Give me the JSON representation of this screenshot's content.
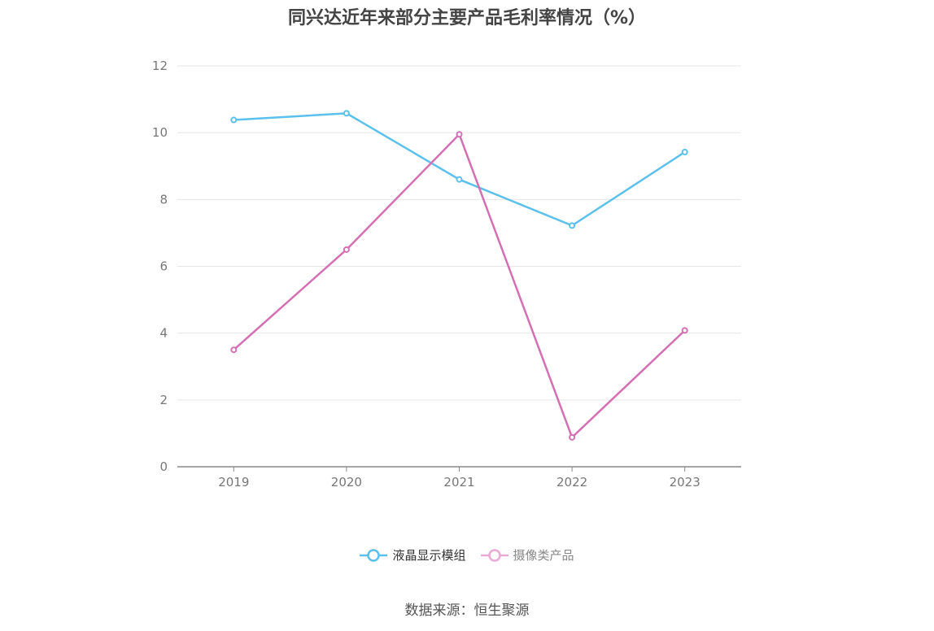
{
  "title": "同兴达近年来部分主要产品毛利率情况（%）",
  "source": "数据来源：恒生聚源",
  "chart_data": {
    "type": "line",
    "categories": [
      "2019",
      "2020",
      "2021",
      "2022",
      "2023"
    ],
    "ylim": [
      0,
      12
    ],
    "yticks": [
      "0",
      "2",
      "4",
      "6",
      "8",
      "10",
      "12"
    ],
    "grid": true,
    "legend_position": "bottom",
    "series": [
      {
        "name": "液晶显示模组",
        "values": [
          10.38,
          10.58,
          8.6,
          7.22,
          9.42
        ],
        "color": "#5bc0eb"
      },
      {
        "name": "摄像类产品",
        "values": [
          3.5,
          6.5,
          9.95,
          0.88,
          4.08
        ],
        "color": "#d46fb4"
      }
    ]
  }
}
